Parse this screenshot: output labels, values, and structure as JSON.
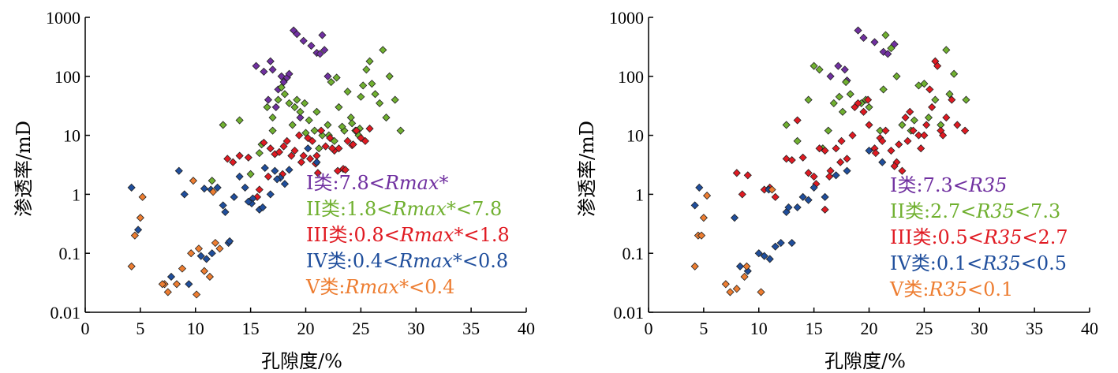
{
  "colors": {
    "I": "#7030a0",
    "II": "#70b030",
    "III": "#e01a22",
    "IV": "#1f4e9c",
    "V": "#ed7d31"
  },
  "chart_data": [
    {
      "type": "scatter",
      "marker": "diamond",
      "xlabel": "孔隙度/%",
      "ylabel": "渗透率/mD",
      "xlim": [
        0,
        40
      ],
      "ylim": [
        0.01,
        1000
      ],
      "yscale": "log",
      "xticks": [
        "0",
        "5",
        "10",
        "15",
        "20",
        "25",
        "30",
        "35",
        "40"
      ],
      "yticks": [
        "0.01",
        "0.1",
        "1",
        "10",
        "100",
        "1000"
      ],
      "grid": false,
      "legend_position": "bottom-right",
      "legend": [
        {
          "cls": "I",
          "prefix": "I类:7.8",
          "op1": "<",
          "param": "Rmax*",
          "op2": "",
          "suffix": ""
        },
        {
          "cls": "II",
          "prefix": "II类:1.8",
          "op1": "<",
          "param": "Rmax*",
          "op2": "<",
          "suffix": "7.8"
        },
        {
          "cls": "III",
          "prefix": "III类:0.8",
          "op1": "<",
          "param": "Rmax*",
          "op2": "<",
          "suffix": "1.8"
        },
        {
          "cls": "IV",
          "prefix": "IV类:0.4",
          "op1": "<",
          "param": "Rmax*",
          "op2": "<",
          "suffix": "0.8"
        },
        {
          "cls": "V",
          "prefix": "V类:",
          "op1": "",
          "param": "Rmax*",
          "op2": "<",
          "suffix": "0.4"
        }
      ],
      "series": [
        {
          "cls": "I",
          "x": [
            15.5,
            16.2,
            16.8,
            17.0,
            17.5,
            17.8,
            18.0,
            18.3,
            18.5,
            18.9,
            19.2,
            19.8,
            20.5,
            21.0,
            21.3,
            21.5,
            21.7,
            22.0,
            19.5,
            16.6,
            17.3
          ],
          "y": [
            150,
            120,
            180,
            130,
            60,
            100,
            80,
            95,
            110,
            600,
            520,
            400,
            330,
            250,
            240,
            500,
            280,
            100,
            20,
            40,
            30
          ]
        },
        {
          "cls": "II",
          "x": [
            14.0,
            15.0,
            15.8,
            16.5,
            17.0,
            17.5,
            17.8,
            18.1,
            18.5,
            18.8,
            19.2,
            19.5,
            19.9,
            20.3,
            20.8,
            21.0,
            21.5,
            22.0,
            22.3,
            22.8,
            23.0,
            23.5,
            23.8,
            24.1,
            24.5,
            24.8,
            25.0,
            25.2,
            25.5,
            25.8,
            26.0,
            26.3,
            26.7,
            27.0,
            27.3,
            27.6,
            28.1,
            28.6,
            23.3,
            24.2,
            24.9,
            22.6,
            17.0,
            16.0,
            12.5,
            11.5,
            19.0,
            20.0,
            21.2,
            22.1
          ],
          "y": [
            18,
            2.2,
            5,
            30,
            12,
            40,
            65,
            50,
            35,
            15,
            40,
            25,
            35,
            18,
            12,
            25,
            10,
            15,
            80,
            95,
            30,
            12,
            55,
            20,
            12,
            10,
            45,
            70,
            130,
            180,
            75,
            50,
            35,
            280,
            20,
            100,
            40,
            12,
            14,
            16,
            13,
            8,
            20,
            7,
            15,
            1.7,
            30,
            11,
            6,
            10
          ]
        },
        {
          "cls": "III",
          "x": [
            14.0,
            14.8,
            15.8,
            16.2,
            16.8,
            17.2,
            17.6,
            18.0,
            18.3,
            18.7,
            19.0,
            19.4,
            19.8,
            20.2,
            20.6,
            21.0,
            21.4,
            21.8,
            22.2,
            22.6,
            23.0,
            23.4,
            23.8,
            24.2,
            24.6,
            25.0,
            25.4,
            25.8,
            21.1,
            22.9,
            23.6,
            19.6,
            15.6,
            17.9,
            20.9,
            24.3,
            12.9,
            13.4,
            16.6,
            22.4,
            20.4
          ],
          "y": [
            4.5,
            4.2,
            1.2,
            7.5,
            6,
            4.8,
            5.2,
            6.5,
            8,
            4.5,
            5.5,
            10,
            4.5,
            9,
            8,
            4.5,
            12,
            6.5,
            9,
            5.5,
            6,
            2.7,
            8,
            6.8,
            12,
            9,
            8,
            13,
            2.3,
            2.5,
            2.6,
            3.5,
            0.9,
            2.2,
            3.3,
            7.0,
            4.0,
            3.5,
            2.0,
            6.0,
            4.0
          ]
        },
        {
          "cls": "IV",
          "x": [
            4.2,
            4.8,
            8.5,
            9.0,
            10.5,
            11.0,
            11.5,
            12.0,
            12.5,
            13.0,
            13.5,
            14.0,
            14.5,
            15.2,
            15.8,
            16.3,
            16.8,
            17.2,
            17.7,
            18.1,
            18.5,
            20.2,
            21.0,
            11.4,
            10.8,
            12.7,
            7.8,
            9.4,
            13.1,
            15.1,
            14.8,
            16.1,
            17.4
          ],
          "y": [
            1.3,
            0.25,
            2.5,
            1.0,
            0.09,
            0.08,
            0.1,
            1.3,
            0.65,
            0.15,
            0.9,
            2.0,
            1.3,
            0.85,
            0.55,
            2.8,
            1.0,
            2.5,
            1.9,
            1.5,
            2.6,
            6.0,
            3.5,
            1.2,
            1.25,
            0.5,
            0.04,
            0.03,
            0.16,
            0.7,
            0.75,
            0.6,
            1.8
          ]
        },
        {
          "cls": "V",
          "x": [
            4.2,
            4.5,
            5.0,
            5.2,
            7.2,
            7.5,
            8.3,
            8.8,
            9.8,
            10.3,
            10.8,
            11.3,
            11.8,
            12.2,
            9.6,
            7.0,
            11.6,
            10.1
          ],
          "y": [
            0.06,
            0.2,
            0.4,
            0.9,
            0.03,
            0.022,
            0.03,
            0.055,
            1.7,
            0.12,
            0.05,
            0.04,
            0.15,
            0.12,
            0.1,
            0.03,
            1.1,
            0.02
          ]
        }
      ]
    },
    {
      "type": "scatter",
      "marker": "diamond",
      "xlabel": "孔隙度/%",
      "ylabel": "渗透率/mD",
      "xlim": [
        0,
        40
      ],
      "ylim": [
        0.01,
        1000
      ],
      "yscale": "log",
      "xticks": [
        "0",
        "5",
        "10",
        "15",
        "20",
        "25",
        "30",
        "35",
        "40"
      ],
      "yticks": [
        "0.01",
        "0.1",
        "1",
        "10",
        "100",
        "1000"
      ],
      "grid": false,
      "legend_position": "bottom-right",
      "legend": [
        {
          "cls": "I",
          "prefix": "I类:7.3",
          "op1": "<",
          "param": "R35",
          "op2": "",
          "suffix": ""
        },
        {
          "cls": "II",
          "prefix": "II类:2.7",
          "op1": "<",
          "param": "R35",
          "op2": "<",
          "suffix": "7.3"
        },
        {
          "cls": "III",
          "prefix": "III类:0.5",
          "op1": "<",
          "param": "R35",
          "op2": "<",
          "suffix": "2.7"
        },
        {
          "cls": "IV",
          "prefix": "IV类:0.1",
          "op1": "<",
          "param": "R35",
          "op2": "<",
          "suffix": "0.5"
        },
        {
          "cls": "V",
          "prefix": "V类:",
          "op1": "",
          "param": "R35",
          "op2": "<",
          "suffix": "0.1"
        }
      ],
      "series": [
        {
          "cls": "I",
          "x": [
            16.5,
            17.2,
            17.8,
            18.0,
            19.0,
            19.5,
            20.5,
            21.3,
            21.7,
            22.3
          ],
          "y": [
            100,
            150,
            130,
            85,
            600,
            450,
            380,
            260,
            240,
            350
          ]
        },
        {
          "cls": "II",
          "x": [
            12.5,
            13.5,
            14.5,
            15.0,
            15.8,
            16.3,
            16.8,
            17.3,
            17.9,
            18.3,
            19.3,
            20.0,
            21.0,
            21.5,
            22.0,
            22.5,
            23.0,
            23.8,
            24.5,
            25.0,
            25.4,
            26.0,
            26.5,
            27.0,
            27.3,
            27.7,
            28.8,
            15.5,
            17.6,
            19.7,
            24.1,
            21.3
          ],
          "y": [
            15,
            8,
            40,
            150,
            6,
            12,
            35,
            45,
            80,
            50,
            35,
            30,
            12,
            500,
            300,
            100,
            15,
            12,
            70,
            75,
            20,
            40,
            15,
            280,
            50,
            110,
            40,
            130,
            25,
            40,
            18,
            60
          ]
        },
        {
          "cls": "III",
          "x": [
            8.0,
            8.5,
            9.0,
            10.5,
            11.0,
            11.5,
            12.5,
            13.0,
            13.5,
            14.0,
            14.5,
            15.0,
            15.5,
            16.0,
            16.5,
            17.0,
            17.5,
            18.0,
            18.5,
            19.0,
            19.5,
            20.0,
            20.5,
            21.0,
            21.5,
            22.0,
            22.5,
            23.0,
            23.5,
            24.0,
            24.5,
            25.0,
            25.5,
            26.0,
            26.5,
            27.0,
            27.5,
            28.0,
            28.7,
            15.2,
            16.4,
            17.4,
            18.7,
            19.9,
            21.2,
            22.7,
            23.7,
            25.2,
            26.2,
            16.0,
            20.6,
            22.3,
            23.3,
            24.7,
            25.7,
            26.7
          ],
          "y": [
            2.3,
            1.0,
            2.1,
            1.2,
            1.3,
            0.9,
            4.0,
            3.8,
            18,
            4.2,
            2.3,
            2.0,
            6,
            5.5,
            2.5,
            6,
            8,
            4,
            10,
            35,
            25,
            15,
            6,
            9,
            12,
            5.5,
            3.5,
            2.5,
            8,
            12,
            10,
            10,
            60,
            180,
            12,
            20,
            40,
            15,
            12,
            1.5,
            2.0,
            3.5,
            30,
            40,
            8,
            7,
            25,
            15,
            150,
            0.55,
            5.0,
            3.0,
            20,
            6.0,
            30,
            10
          ]
        },
        {
          "cls": "IV",
          "x": [
            4.2,
            4.6,
            7.8,
            8.3,
            9.0,
            10.0,
            10.5,
            11.0,
            11.5,
            12.0,
            12.5,
            13.0,
            13.5,
            14.0,
            14.5,
            15.0,
            16.0,
            17.0,
            18.0,
            20.0,
            21.2,
            10.9,
            12.7
          ],
          "y": [
            0.65,
            1.3,
            0.4,
            0.06,
            0.05,
            0.1,
            0.09,
            0.08,
            0.13,
            0.15,
            0.5,
            0.15,
            0.6,
            0.9,
            0.8,
            1.3,
            0.9,
            2.1,
            2.5,
            5.5,
            3.5,
            1.2,
            0.6
          ]
        },
        {
          "cls": "V",
          "x": [
            4.2,
            4.5,
            5.0,
            5.3,
            7.0,
            7.4,
            8.0,
            8.7,
            10.2,
            11.2,
            4.8,
            8.9
          ],
          "y": [
            0.06,
            0.2,
            0.4,
            0.95,
            0.03,
            0.022,
            0.025,
            0.04,
            0.022,
            1.2,
            0.2,
            0.06
          ]
        }
      ]
    }
  ]
}
